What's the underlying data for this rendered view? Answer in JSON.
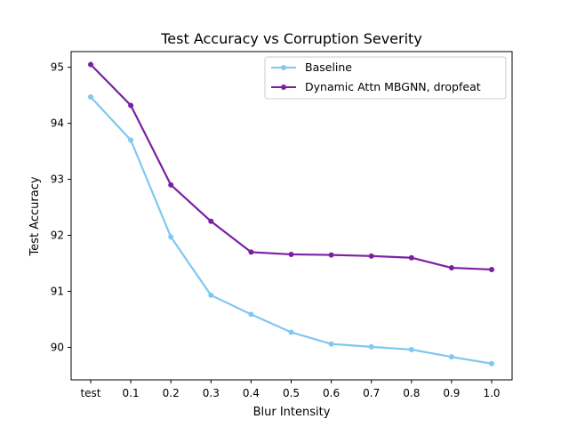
{
  "chart_data": {
    "type": "line",
    "title": "Test Accuracy vs Corruption Severity",
    "xlabel": "Blur Intensity",
    "ylabel": "Test Accuracy",
    "categories": [
      "test",
      "0.1",
      "0.2",
      "0.3",
      "0.4",
      "0.5",
      "0.6",
      "0.7",
      "0.8",
      "0.9",
      "1.0"
    ],
    "yticks": [
      "90",
      "91",
      "92",
      "93",
      "94",
      "95"
    ],
    "ylim": [
      89.42,
      95.28
    ],
    "grid": false,
    "legend_position": "top-right",
    "series": [
      {
        "name": "Baseline",
        "color": "#7fc8f0",
        "values": [
          94.47,
          93.7,
          91.97,
          90.93,
          90.59,
          90.27,
          90.06,
          90.01,
          89.96,
          89.83,
          89.71
        ]
      },
      {
        "name": "Dynamic Attn MBGNN, dropfeat",
        "color": "#7b1fa2",
        "values": [
          95.05,
          94.32,
          92.9,
          92.25,
          91.7,
          91.66,
          91.65,
          91.63,
          91.6,
          91.42,
          91.39
        ]
      }
    ]
  }
}
